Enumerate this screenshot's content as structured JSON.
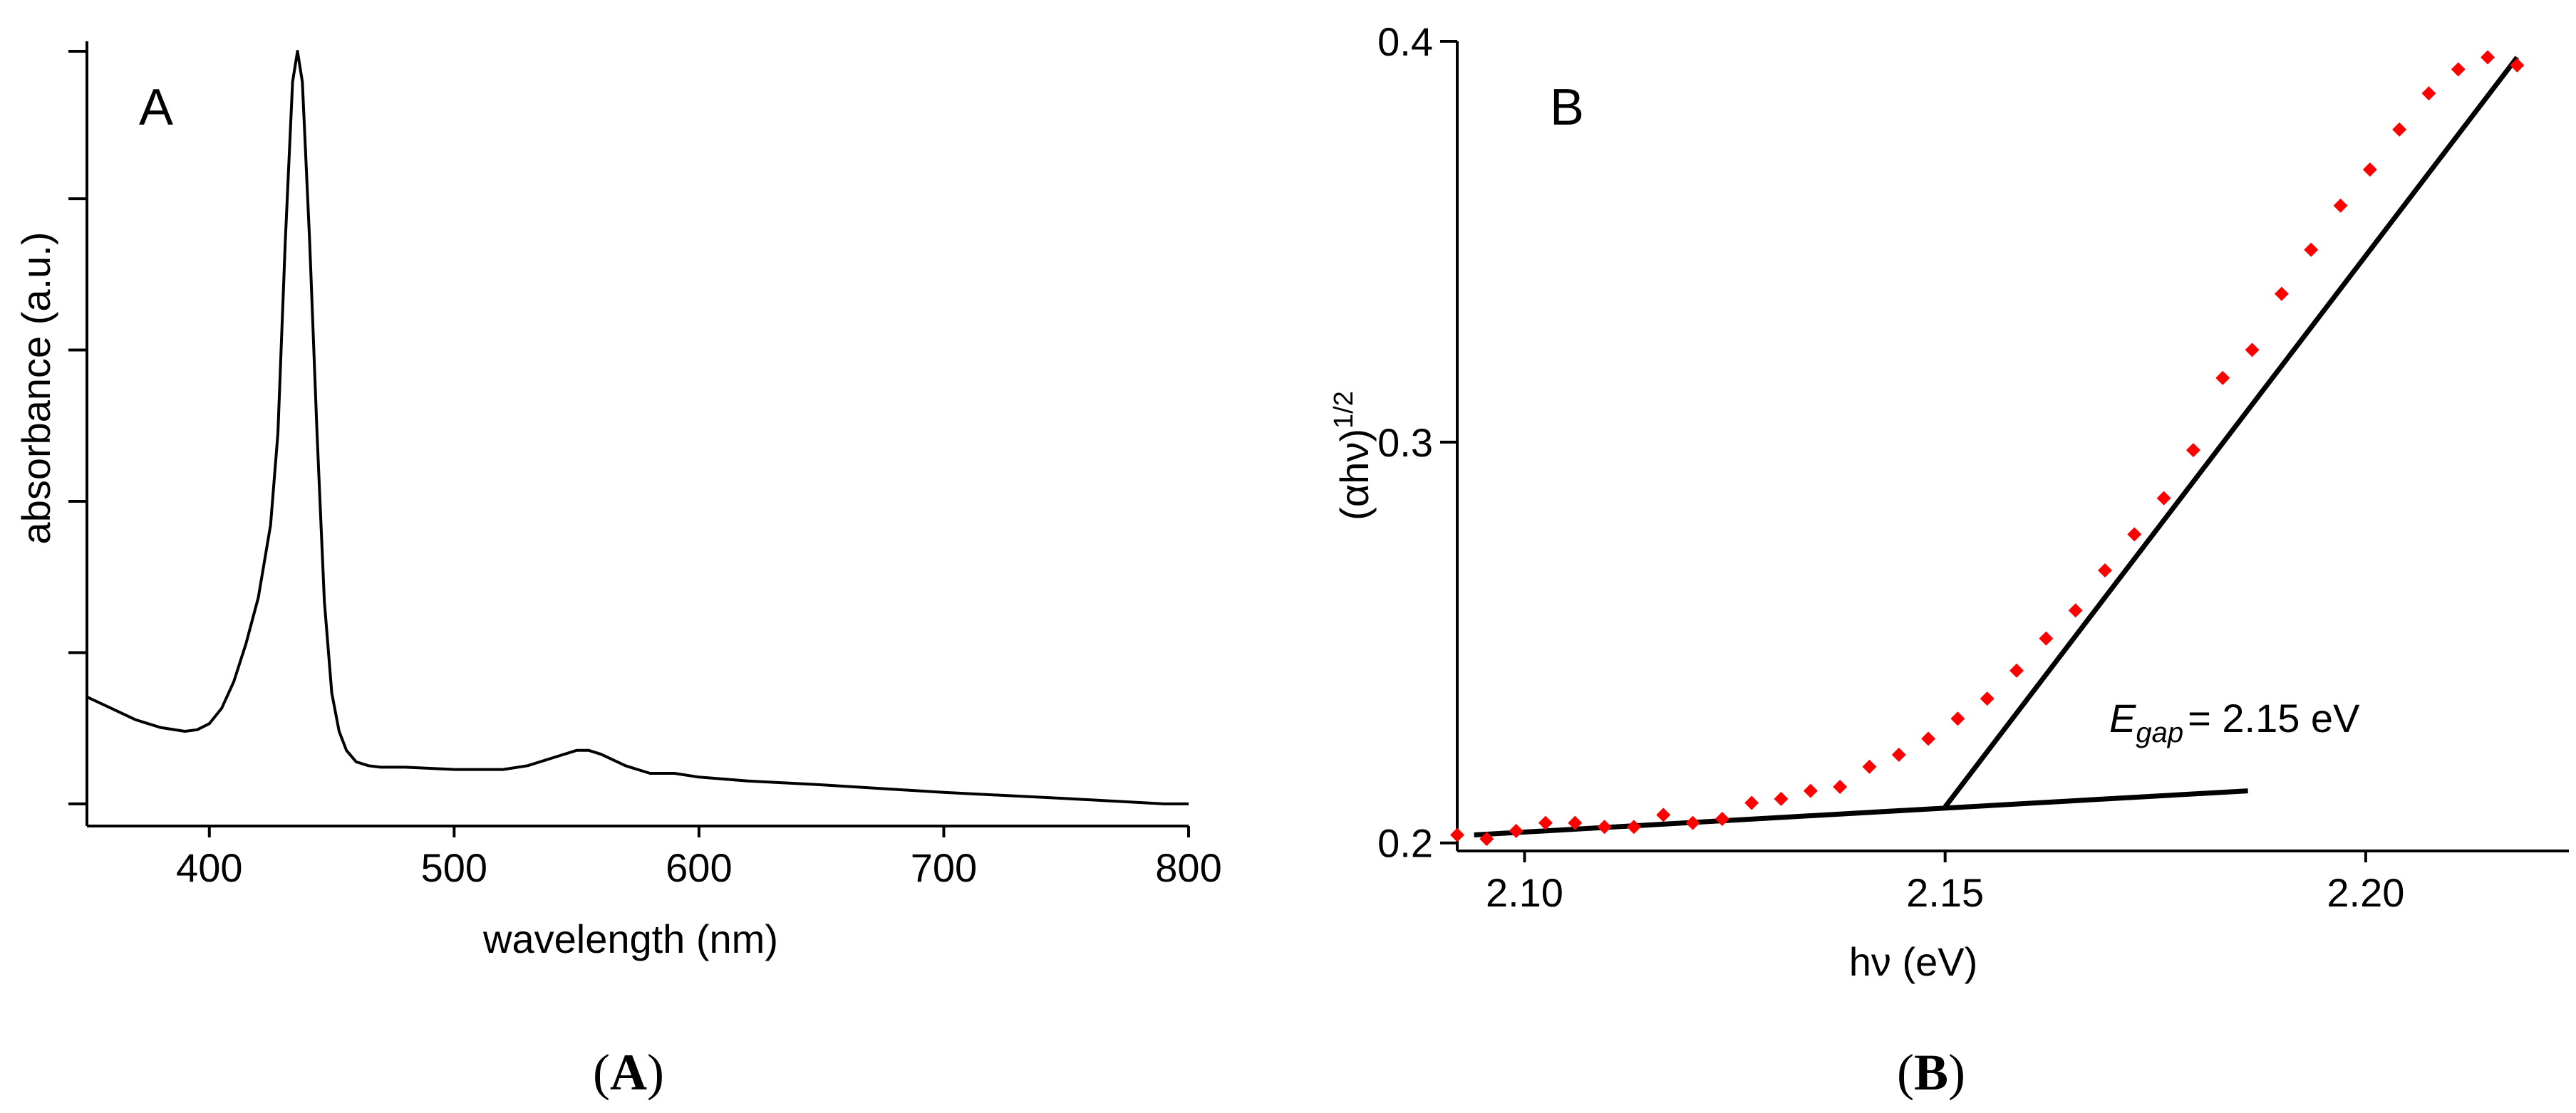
{
  "chart_data": [
    {
      "type": "line",
      "panel_label": "A",
      "caption": "A",
      "xlabel": "wavelength (nm)",
      "ylabel": "absorbance (a.u.)",
      "xlim": [
        350,
        800
      ],
      "ylim": [
        0,
        1
      ],
      "xticks": [
        400,
        500,
        600,
        700,
        800
      ],
      "xtick_labels": [
        "400",
        "500",
        "600",
        "700",
        "800"
      ],
      "yticks": [
        0.015,
        0.213,
        0.411,
        0.609,
        0.807,
        1.0
      ],
      "ytick_labels": [
        "",
        "",
        "",
        "",
        "",
        ""
      ],
      "line_color": "#000000",
      "series": [
        {
          "name": "absorbance",
          "x": [
            350,
            360,
            370,
            380,
            390,
            395,
            400,
            405,
            410,
            415,
            420,
            425,
            428,
            431,
            434,
            436,
            438,
            441,
            444,
            447,
            450,
            453,
            456,
            460,
            465,
            470,
            480,
            500,
            520,
            530,
            540,
            550,
            555,
            560,
            570,
            580,
            590,
            600,
            620,
            650,
            700,
            750,
            790,
            800
          ],
          "y": [
            0.155,
            0.14,
            0.125,
            0.115,
            0.11,
            0.112,
            0.12,
            0.14,
            0.175,
            0.225,
            0.285,
            0.38,
            0.5,
            0.75,
            0.96,
            1.0,
            0.96,
            0.75,
            0.5,
            0.28,
            0.16,
            0.11,
            0.085,
            0.07,
            0.065,
            0.063,
            0.063,
            0.06,
            0.06,
            0.065,
            0.075,
            0.085,
            0.085,
            0.08,
            0.065,
            0.055,
            0.055,
            0.05,
            0.045,
            0.04,
            0.03,
            0.022,
            0.015,
            0.015
          ]
        }
      ]
    },
    {
      "type": "scatter",
      "panel_label": "B",
      "caption": "B",
      "xlabel": "hν (eV)",
      "ylabel": "(αhν)",
      "ylabel_superscript": "1/2",
      "xlim": [
        2.092,
        2.22
      ],
      "ylim": [
        0.198,
        0.4
      ],
      "xticks": [
        2.1,
        2.15,
        2.2
      ],
      "xtick_labels": [
        "2.10",
        "2.15",
        "2.20"
      ],
      "yticks": [
        0.2,
        0.3,
        0.4
      ],
      "ytick_labels": [
        "0.2",
        "0.3",
        "0.4"
      ],
      "marker_color": "#ff0000",
      "fit_line_color": "#000000",
      "series": [
        {
          "name": "data",
          "x": [
            2.092,
            2.0955,
            2.099,
            2.1025,
            2.106,
            2.1095,
            2.113,
            2.1165,
            2.12,
            2.1235,
            2.127,
            2.1305,
            2.134,
            2.1375,
            2.141,
            2.1445,
            2.148,
            2.1515,
            2.155,
            2.1585,
            2.162,
            2.1655,
            2.169,
            2.1725,
            2.176,
            2.1795,
            2.183,
            2.1865,
            2.19,
            2.1935,
            2.197,
            2.2005,
            2.204,
            2.2075,
            2.211,
            2.2145,
            2.218
          ],
          "y": [
            0.202,
            0.201,
            0.203,
            0.205,
            0.205,
            0.204,
            0.204,
            0.207,
            0.205,
            0.206,
            0.21,
            0.211,
            0.213,
            0.214,
            0.219,
            0.222,
            0.226,
            0.231,
            0.236,
            0.243,
            0.251,
            0.258,
            0.268,
            0.277,
            0.286,
            0.298,
            0.316,
            0.323,
            0.337,
            0.348,
            0.359,
            0.368,
            0.378,
            0.387,
            0.393,
            0.396,
            0.394
          ]
        },
        {
          "name": "baseline fit",
          "x": [
            2.094,
            2.186
          ],
          "y": [
            0.202,
            0.213
          ]
        },
        {
          "name": "linear fit",
          "x": [
            2.15,
            2.218
          ],
          "y": [
            0.209,
            0.396
          ]
        }
      ],
      "annotation": {
        "symbol": "E",
        "subscript": "gap",
        "text": "= 2.15 eV",
        "x": 2.155,
        "y": 0.226
      }
    }
  ]
}
